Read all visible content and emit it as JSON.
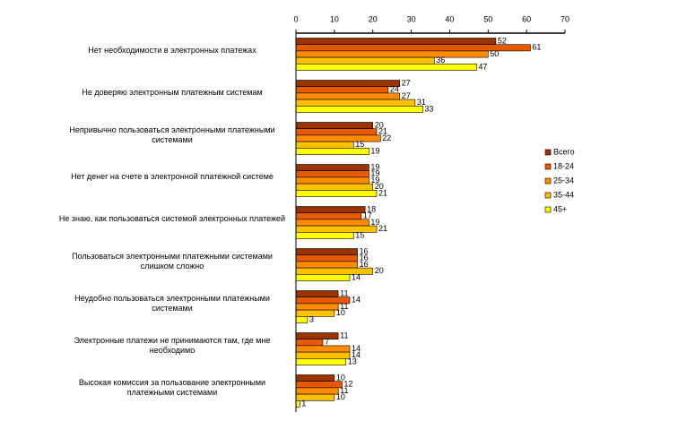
{
  "chart_data": {
    "type": "bar",
    "orientation": "horizontal",
    "categories": [
      "Нет необходимости в электронных платежах",
      "Не доверяю электронным платежным системам",
      "Непривычно пользоваться электронными платежными системами",
      "Нет денег на счете в электронной платежной системе",
      "Не знаю, как пользоваться системой электронных платежей",
      "Пользоваться электронными платежными системами слишком сложно",
      "Неудобно пользоваться электронными платежными системами",
      "Электронные платежи не принимаются там, где мне необходимо",
      "Высокая комиссия за пользование электронными платежными системами"
    ],
    "series": [
      {
        "name": "Всего",
        "color": "#993300",
        "values": [
          52,
          27,
          20,
          19,
          18,
          16,
          11,
          11,
          10
        ]
      },
      {
        "name": "18-24",
        "color": "#e85a00",
        "values": [
          61,
          24,
          21,
          19,
          17,
          16,
          14,
          7,
          12
        ]
      },
      {
        "name": "25-34",
        "color": "#ff8c00",
        "values": [
          50,
          27,
          22,
          19,
          19,
          16,
          11,
          14,
          11
        ]
      },
      {
        "name": "35-44",
        "color": "#ffc000",
        "values": [
          36,
          31,
          15,
          20,
          21,
          20,
          10,
          14,
          10
        ]
      },
      {
        "name": "45+",
        "color": "#ffff00",
        "values": [
          47,
          33,
          19,
          21,
          15,
          14,
          3,
          13,
          1
        ]
      }
    ],
    "xlim": [
      0,
      70
    ],
    "xticks": [
      0,
      10,
      20,
      30,
      40,
      50,
      60,
      70
    ],
    "legend": "right"
  }
}
